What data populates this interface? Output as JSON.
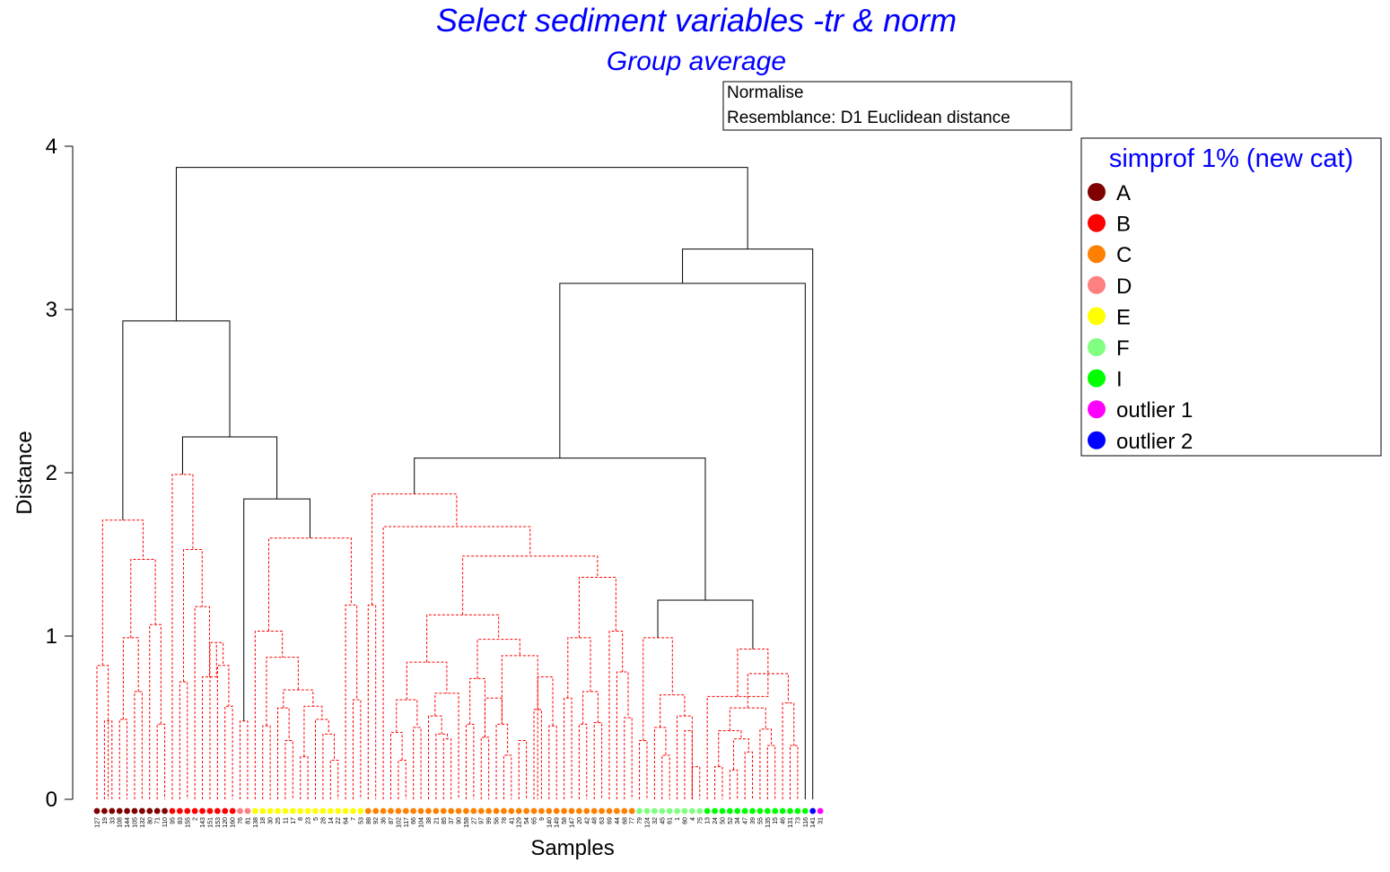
{
  "chart_data": {
    "type": "dendrogram",
    "title": "Select sediment variables -tr & norm",
    "subtitle": "Group average",
    "info_box": [
      "Normalise",
      "Resemblance: D1 Euclidean distance"
    ],
    "xlabel": "Samples",
    "ylabel": "Distance",
    "ylim": [
      0,
      4
    ],
    "yticks": [
      0,
      1,
      2,
      3,
      4
    ],
    "legend": {
      "title": "simprof 1% (new cat)",
      "placement": "right",
      "items": [
        {
          "label": "A",
          "color": "#800000"
        },
        {
          "label": "B",
          "color": "#ff0000"
        },
        {
          "label": "C",
          "color": "#ff8000"
        },
        {
          "label": "D",
          "color": "#ff8080"
        },
        {
          "label": "E",
          "color": "#ffff00"
        },
        {
          "label": "F",
          "color": "#80ff80"
        },
        {
          "label": "I",
          "color": "#00ff00"
        },
        {
          "label": "outlier 1",
          "color": "#ff00ff"
        },
        {
          "label": "outlier 2",
          "color": "#0000ff"
        }
      ]
    },
    "leaves": [
      {
        "label": "127",
        "group": "A"
      },
      {
        "label": "19",
        "group": "A"
      },
      {
        "label": "33",
        "group": "A"
      },
      {
        "label": "108",
        "group": "A"
      },
      {
        "label": "144",
        "group": "A"
      },
      {
        "label": "105",
        "group": "A"
      },
      {
        "label": "132",
        "group": "A"
      },
      {
        "label": "80",
        "group": "A"
      },
      {
        "label": "71",
        "group": "A"
      },
      {
        "label": "110",
        "group": "A"
      },
      {
        "label": "95",
        "group": "B"
      },
      {
        "label": "83",
        "group": "B"
      },
      {
        "label": "155",
        "group": "B"
      },
      {
        "label": "2",
        "group": "B"
      },
      {
        "label": "143",
        "group": "B"
      },
      {
        "label": "151",
        "group": "B"
      },
      {
        "label": "153",
        "group": "B"
      },
      {
        "label": "120",
        "group": "B"
      },
      {
        "label": "160",
        "group": "B"
      },
      {
        "label": "76",
        "group": "D"
      },
      {
        "label": "81",
        "group": "D"
      },
      {
        "label": "138",
        "group": "E"
      },
      {
        "label": "18",
        "group": "E"
      },
      {
        "label": "30",
        "group": "E"
      },
      {
        "label": "25",
        "group": "E"
      },
      {
        "label": "11",
        "group": "E"
      },
      {
        "label": "17",
        "group": "E"
      },
      {
        "label": "8",
        "group": "E"
      },
      {
        "label": "23",
        "group": "E"
      },
      {
        "label": "5",
        "group": "E"
      },
      {
        "label": "28",
        "group": "E"
      },
      {
        "label": "14",
        "group": "E"
      },
      {
        "label": "22",
        "group": "E"
      },
      {
        "label": "64",
        "group": "E"
      },
      {
        "label": "7",
        "group": "E"
      },
      {
        "label": "53",
        "group": "E"
      },
      {
        "label": "88",
        "group": "C"
      },
      {
        "label": "92",
        "group": "C"
      },
      {
        "label": "36",
        "group": "C"
      },
      {
        "label": "87",
        "group": "C"
      },
      {
        "label": "102",
        "group": "C"
      },
      {
        "label": "117",
        "group": "C"
      },
      {
        "label": "66",
        "group": "C"
      },
      {
        "label": "104",
        "group": "C"
      },
      {
        "label": "38",
        "group": "C"
      },
      {
        "label": "21",
        "group": "C"
      },
      {
        "label": "85",
        "group": "C"
      },
      {
        "label": "37",
        "group": "C"
      },
      {
        "label": "90",
        "group": "C"
      },
      {
        "label": "158",
        "group": "C"
      },
      {
        "label": "27",
        "group": "C"
      },
      {
        "label": "97",
        "group": "C"
      },
      {
        "label": "99",
        "group": "C"
      },
      {
        "label": "56",
        "group": "C"
      },
      {
        "label": "78",
        "group": "C"
      },
      {
        "label": "41",
        "group": "C"
      },
      {
        "label": "129",
        "group": "C"
      },
      {
        "label": "54",
        "group": "C"
      },
      {
        "label": "65",
        "group": "C"
      },
      {
        "label": "9",
        "group": "C"
      },
      {
        "label": "140",
        "group": "C"
      },
      {
        "label": "149",
        "group": "C"
      },
      {
        "label": "58",
        "group": "C"
      },
      {
        "label": "147",
        "group": "C"
      },
      {
        "label": "20",
        "group": "C"
      },
      {
        "label": "42",
        "group": "C"
      },
      {
        "label": "48",
        "group": "C"
      },
      {
        "label": "63",
        "group": "C"
      },
      {
        "label": "69",
        "group": "C"
      },
      {
        "label": "44",
        "group": "C"
      },
      {
        "label": "68",
        "group": "C"
      },
      {
        "label": "77",
        "group": "C"
      },
      {
        "label": "79",
        "group": "F"
      },
      {
        "label": "124",
        "group": "F"
      },
      {
        "label": "32",
        "group": "F"
      },
      {
        "label": "45",
        "group": "F"
      },
      {
        "label": "61",
        "group": "F"
      },
      {
        "label": "1",
        "group": "F"
      },
      {
        "label": "60",
        "group": "F"
      },
      {
        "label": "4",
        "group": "F"
      },
      {
        "label": "75",
        "group": "F"
      },
      {
        "label": "13",
        "group": "I"
      },
      {
        "label": "24",
        "group": "I"
      },
      {
        "label": "50",
        "group": "I"
      },
      {
        "label": "52",
        "group": "I"
      },
      {
        "label": "34",
        "group": "I"
      },
      {
        "label": "47",
        "group": "I"
      },
      {
        "label": "39",
        "group": "I"
      },
      {
        "label": "55",
        "group": "I"
      },
      {
        "label": "135",
        "group": "I"
      },
      {
        "label": "15",
        "group": "I"
      },
      {
        "label": "46",
        "group": "I"
      },
      {
        "label": "131",
        "group": "I"
      },
      {
        "label": "73",
        "group": "I"
      },
      {
        "label": "116",
        "group": "I"
      },
      {
        "label": "141",
        "group": "outlier 2"
      },
      {
        "label": "31",
        "group": "outlier 1"
      }
    ],
    "merges": [
      {
        "a": 0,
        "b": [
          1,
          2
        ],
        "h": 0.82,
        "dashed": true
      },
      {
        "a": 1,
        "b": 2,
        "h": 0.48,
        "dashed": true
      },
      {
        "a": 3,
        "b": 4,
        "h": 0.49,
        "dashed": true
      },
      {
        "a": 5,
        "b": 6,
        "h": 0.66,
        "dashed": true
      },
      {
        "a": [
          3,
          4
        ],
        "b": [
          5,
          6
        ],
        "h": 0.99,
        "dashed": true
      },
      {
        "a": 8,
        "b": 9,
        "h": 0.46,
        "dashed": true
      },
      {
        "a": 7,
        "b": [
          8,
          9
        ],
        "h": 1.07,
        "dashed": true
      },
      {
        "a": [
          3,
          6
        ],
        "b": [
          7,
          9
        ],
        "h": 1.47,
        "dashed": true
      },
      {
        "a": [
          0,
          2
        ],
        "b": [
          3,
          9
        ],
        "h": 1.71,
        "dashed": true
      },
      {
        "a": 11,
        "b": 12,
        "h": 0.72,
        "dashed": true
      },
      {
        "a": 17,
        "b": 18,
        "h": 0.57,
        "dashed": true
      },
      {
        "a": 16,
        "b": [
          17,
          18
        ],
        "h": 0.82,
        "dashed": true
      },
      {
        "a": 15,
        "b": [
          16,
          18
        ],
        "h": 0.96,
        "dashed": true
      },
      {
        "a": 14,
        "b": [
          15,
          18
        ],
        "h": 0.75,
        "dashed": true
      },
      {
        "a": 13,
        "b": [
          14,
          18
        ],
        "h": 1.18,
        "dashed": true
      },
      {
        "a": [
          11,
          12
        ],
        "b": [
          13,
          18
        ],
        "h": 1.53,
        "dashed": true
      },
      {
        "a": 10,
        "b": [
          11,
          18
        ],
        "h": 1.99,
        "dashed": true
      },
      {
        "a": 19,
        "b": 20,
        "h": 0.48,
        "dashed": true
      },
      {
        "a": 22,
        "b": 23,
        "h": 0.45,
        "dashed": true
      },
      {
        "a": 25,
        "b": 26,
        "h": 0.36,
        "dashed": true
      },
      {
        "a": 24,
        "b": [
          25,
          26
        ],
        "h": 0.56,
        "dashed": true
      },
      {
        "a": 27,
        "b": 28,
        "h": 0.26,
        "dashed": true
      },
      {
        "a": 31,
        "b": 32,
        "h": 0.24,
        "dashed": true
      },
      {
        "a": 30,
        "b": [
          31,
          32
        ],
        "h": 0.4,
        "dashed": true
      },
      {
        "a": 29,
        "b": [
          30,
          32
        ],
        "h": 0.49,
        "dashed": true
      },
      {
        "a": [
          27,
          28
        ],
        "b": [
          29,
          32
        ],
        "h": 0.57,
        "dashed": true
      },
      {
        "a": [
          24,
          26
        ],
        "b": [
          27,
          32
        ],
        "h": 0.67,
        "dashed": true
      },
      {
        "a": [
          22,
          23
        ],
        "b": [
          24,
          32
        ],
        "h": 0.87,
        "dashed": true
      },
      {
        "a": 21,
        "b": [
          22,
          32
        ],
        "h": 1.03,
        "dashed": true
      },
      {
        "a": 34,
        "b": 35,
        "h": 0.61,
        "dashed": true
      },
      {
        "a": 33,
        "b": [
          34,
          35
        ],
        "h": 1.19,
        "dashed": true
      },
      {
        "a": [
          21,
          32
        ],
        "b": [
          33,
          35
        ],
        "h": 1.6,
        "dashed": true
      },
      {
        "a": [
          19,
          20
        ],
        "b": [
          21,
          35
        ],
        "h": 1.84,
        "dashed": false
      },
      {
        "a": [
          10,
          18
        ],
        "b": [
          19,
          35
        ],
        "h": 2.22,
        "dashed": false
      },
      {
        "a": [
          0,
          9
        ],
        "b": [
          10,
          35
        ],
        "h": 2.93,
        "dashed": false
      },
      {
        "a": 36,
        "b": 37,
        "h": 1.19,
        "dashed": true
      },
      {
        "a": 40,
        "b": 41,
        "h": 0.24,
        "dashed": true
      },
      {
        "a": 39,
        "b": [
          40,
          41
        ],
        "h": 0.41,
        "dashed": true
      },
      {
        "a": 42,
        "b": 43,
        "h": 0.44,
        "dashed": true
      },
      {
        "a": [
          39,
          41
        ],
        "b": [
          42,
          43
        ],
        "h": 0.61,
        "dashed": true
      },
      {
        "a": 46,
        "b": 47,
        "h": 0.37,
        "dashed": true
      },
      {
        "a": 45,
        "b": [
          46,
          47
        ],
        "h": 0.4,
        "dashed": true
      },
      {
        "a": 44,
        "b": [
          45,
          47
        ],
        "h": 0.51,
        "dashed": true
      },
      {
        "a": [
          44,
          47
        ],
        "b": 48,
        "h": 0.65,
        "dashed": true
      },
      {
        "a": [
          39,
          43
        ],
        "b": [
          44,
          48
        ],
        "h": 0.84,
        "dashed": true
      },
      {
        "a": 49,
        "b": 50,
        "h": 0.46,
        "dashed": true
      },
      {
        "a": 51,
        "b": 52,
        "h": 0.38,
        "dashed": true
      },
      {
        "a": [
          49,
          50
        ],
        "b": [
          51,
          52
        ],
        "h": 0.74,
        "dashed": true
      },
      {
        "a": 54,
        "b": 55,
        "h": 0.27,
        "dashed": true
      },
      {
        "a": 53,
        "b": [
          54,
          55
        ],
        "h": 0.46,
        "dashed": true
      },
      {
        "a": [
          51,
          52
        ],
        "b": [
          53,
          55
        ],
        "h": 0.62,
        "dashed": true
      },
      {
        "a": 56,
        "b": 57,
        "h": 0.36,
        "dashed": true
      },
      {
        "a": 58,
        "b": 59,
        "h": 0.55,
        "dashed": true
      },
      {
        "a": 60,
        "b": 61,
        "h": 0.45,
        "dashed": true
      },
      {
        "a": [
          58,
          59
        ],
        "b": [
          60,
          61
        ],
        "h": 0.75,
        "dashed": true
      },
      {
        "a": [
          53,
          55
        ],
        "b": [
          56,
          61
        ],
        "h": 0.88,
        "dashed": true
      },
      {
        "a": [
          49,
          52
        ],
        "b": [
          53,
          61
        ],
        "h": 0.98,
        "dashed": true
      },
      {
        "a": [
          39,
          48
        ],
        "b": [
          49,
          61
        ],
        "h": 1.13,
        "dashed": true
      },
      {
        "a": 62,
        "b": 63,
        "h": 0.62,
        "dashed": true
      },
      {
        "a": 64,
        "b": 65,
        "h": 0.46,
        "dashed": true
      },
      {
        "a": 66,
        "b": 67,
        "h": 0.47,
        "dashed": true
      },
      {
        "a": [
          64,
          65
        ],
        "b": [
          66,
          67
        ],
        "h": 0.66,
        "dashed": true
      },
      {
        "a": [
          62,
          63
        ],
        "b": [
          64,
          67
        ],
        "h": 0.99,
        "dashed": true
      },
      {
        "a": 70,
        "b": 71,
        "h": 0.5,
        "dashed": true
      },
      {
        "a": 69,
        "b": [
          70,
          71
        ],
        "h": 0.78,
        "dashed": true
      },
      {
        "a": 68,
        "b": [
          69,
          71
        ],
        "h": 1.03,
        "dashed": true
      },
      {
        "a": [
          62,
          67
        ],
        "b": [
          68,
          71
        ],
        "h": 1.36,
        "dashed": true
      },
      {
        "a": [
          39,
          61
        ],
        "b": [
          62,
          71
        ],
        "h": 1.49,
        "dashed": true
      },
      {
        "a": 38,
        "b": [
          39,
          71
        ],
        "h": 1.67,
        "dashed": true
      },
      {
        "a": [
          36,
          37
        ],
        "b": [
          38,
          71
        ],
        "h": 1.87,
        "dashed": true
      },
      {
        "a": 72,
        "b": 73,
        "h": 0.36,
        "dashed": true
      },
      {
        "a": 75,
        "b": 76,
        "h": 0.27,
        "dashed": true
      },
      {
        "a": 74,
        "b": [
          75,
          76
        ],
        "h": 0.44,
        "dashed": true
      },
      {
        "a": 78,
        "b": 79,
        "h": 0.42,
        "dashed": true
      },
      {
        "a": 79,
        "b": 80,
        "h": 0.2,
        "dashed": true
      },
      {
        "a": 77,
        "b": [
          78,
          80
        ],
        "h": 0.51,
        "dashed": true
      },
      {
        "a": [
          74,
          76
        ],
        "b": [
          77,
          80
        ],
        "h": 0.64,
        "dashed": true
      },
      {
        "a": [
          72,
          73
        ],
        "b": [
          74,
          80
        ],
        "h": 0.99,
        "dashed": true
      },
      {
        "a": 82,
        "b": 83,
        "h": 0.2,
        "dashed": true
      },
      {
        "a": 84,
        "b": 85,
        "h": 0.18,
        "dashed": true
      },
      {
        "a": 86,
        "b": 87,
        "h": 0.29,
        "dashed": true
      },
      {
        "a": [
          84,
          85
        ],
        "b": [
          86,
          87
        ],
        "h": 0.37,
        "dashed": true
      },
      {
        "a": [
          82,
          83
        ],
        "b": [
          84,
          87
        ],
        "h": 0.42,
        "dashed": true
      },
      {
        "a": 89,
        "b": 90,
        "h": 0.33,
        "dashed": true
      },
      {
        "a": 88,
        "b": [
          89,
          90
        ],
        "h": 0.43,
        "dashed": true
      },
      {
        "a": [
          82,
          87
        ],
        "b": [
          88,
          90
        ],
        "h": 0.56,
        "dashed": true
      },
      {
        "a": 92,
        "b": 93,
        "h": 0.33,
        "dashed": true
      },
      {
        "a": 91,
        "b": [
          92,
          93
        ],
        "h": 0.59,
        "dashed": true
      },
      {
        "a": [
          82,
          90
        ],
        "b": [
          91,
          93
        ],
        "h": 0.77,
        "dashed": true
      },
      {
        "a": 81,
        "b": [
          82,
          93
        ],
        "h": 0.63,
        "dashed": true
      },
      {
        "a": [
          81,
          93
        ],
        "b": [
          82,
          93
        ],
        "h": 0.92,
        "dashed": true
      },
      {
        "a": [
          72,
          80
        ],
        "b": [
          81,
          93
        ],
        "h": 1.22,
        "dashed": false
      },
      {
        "a": [
          36,
          71
        ],
        "b": [
          72,
          93
        ],
        "h": 2.09,
        "dashed": false
      },
      {
        "a": [
          36,
          93
        ],
        "b": 94,
        "h": 3.16,
        "dashed": false
      },
      {
        "a": [
          36,
          94
        ],
        "b": 95,
        "h": 3.37,
        "dashed": false
      },
      {
        "a": [
          0,
          35
        ],
        "b": [
          36,
          95
        ],
        "h": 3.87,
        "dashed": false
      }
    ]
  }
}
